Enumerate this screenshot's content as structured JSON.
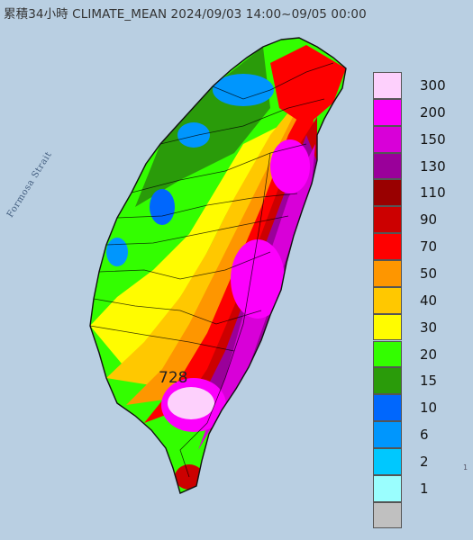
{
  "title": "累積34小時 CLIMATE_MEAN 2024/09/03 14:00~09/05 00:00",
  "strait_label": "Formosa Strait",
  "max_label": "728",
  "corner_label": "1",
  "legend": [
    {
      "label": "300",
      "color": "#fdd0fc"
    },
    {
      "label": "200",
      "color": "#fc00fc"
    },
    {
      "label": "150",
      "color": "#d800d8"
    },
    {
      "label": "130",
      "color": "#9a009a"
    },
    {
      "label": "110",
      "color": "#990000"
    },
    {
      "label": "90",
      "color": "#cc0000"
    },
    {
      "label": "70",
      "color": "#fe0000"
    },
    {
      "label": "50",
      "color": "#fe9600"
    },
    {
      "label": "40",
      "color": "#ffc800"
    },
    {
      "label": "30",
      "color": "#fffc00"
    },
    {
      "label": "20",
      "color": "#33fe00"
    },
    {
      "label": "15",
      "color": "#2a9b0a"
    },
    {
      "label": "10",
      "color": "#0067fd"
    },
    {
      "label": "6",
      "color": "#0096fd"
    },
    {
      "label": "2",
      "color": "#00c8fe"
    },
    {
      "label": "1",
      "color": "#9afefe"
    },
    {
      "label": "",
      "color": "#c0c0c0"
    }
  ]
}
